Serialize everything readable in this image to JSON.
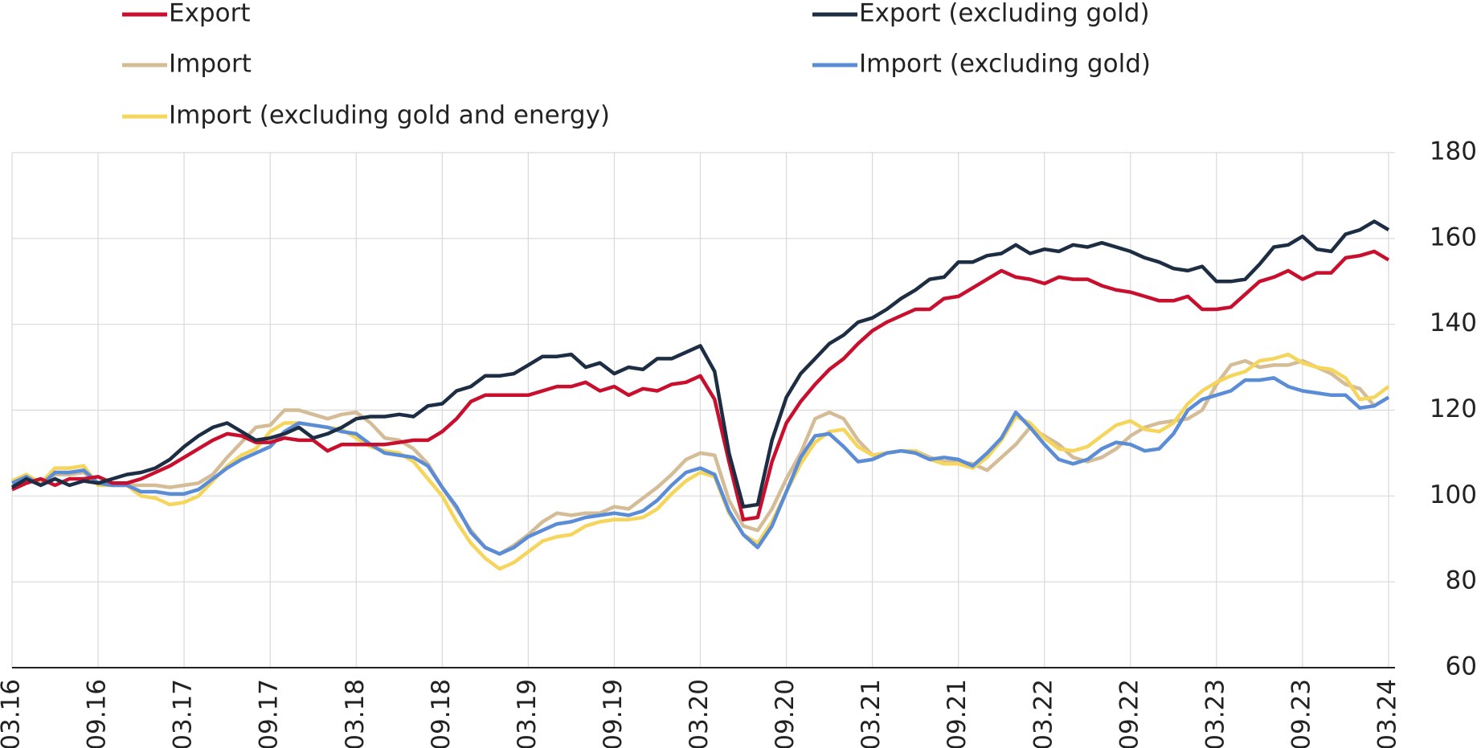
{
  "chart_data": {
    "type": "line",
    "categories": [
      "03.16",
      null,
      null,
      null,
      null,
      null,
      "09.16",
      null,
      null,
      null,
      null,
      null,
      "03.17",
      null,
      null,
      null,
      null,
      null,
      "09.17",
      null,
      null,
      null,
      null,
      null,
      "03.18",
      null,
      null,
      null,
      null,
      null,
      "09.18",
      null,
      null,
      null,
      null,
      null,
      "03.19",
      null,
      null,
      null,
      null,
      null,
      "09.19",
      null,
      null,
      null,
      null,
      null,
      "03.20",
      null,
      null,
      null,
      null,
      null,
      "09.20",
      null,
      null,
      null,
      null,
      null,
      "03.21",
      null,
      null,
      null,
      null,
      null,
      "09.21",
      null,
      null,
      null,
      null,
      null,
      "03.22",
      null,
      null,
      null,
      null,
      null,
      "09.22",
      null,
      null,
      null,
      null,
      null,
      "03.23",
      null,
      null,
      null,
      null,
      null,
      "09.23",
      null,
      null,
      null,
      null,
      null,
      "03.24"
    ],
    "series": [
      {
        "name": "Export",
        "color": "#c8102e",
        "values": [
          101.5,
          103,
          104,
          102.5,
          104,
          104,
          104.5,
          103,
          103,
          104,
          105.5,
          107,
          109,
          111,
          113,
          114.5,
          114,
          112.5,
          112.5,
          113.5,
          113,
          113,
          110.5,
          112,
          112,
          112,
          112,
          112.5,
          113,
          113,
          115,
          118,
          122,
          123.5,
          123.5,
          123.5,
          123.5,
          124.5,
          125.5,
          125.5,
          126.5,
          124.5,
          125.5,
          123.5,
          125,
          124.5,
          126,
          126.5,
          128,
          122.5,
          108,
          94.5,
          95,
          108,
          117,
          122,
          126,
          129.5,
          132,
          135.5,
          138.5,
          140.5,
          142,
          143.5,
          143.5,
          146,
          146.5,
          148.5,
          150.5,
          152.5,
          151,
          150.5,
          149.5,
          151,
          150.5,
          150.5,
          149,
          148,
          147.5,
          146.5,
          145.5,
          145.5,
          146.5,
          143.5,
          143.5,
          144,
          147,
          150,
          151,
          152.5,
          150.5,
          152,
          152,
          155.5,
          156,
          157,
          155
        ]
      },
      {
        "name": "Export (excluding gold)",
        "color": "#1d2d44",
        "values": [
          102,
          104,
          102.5,
          104,
          102.5,
          103.5,
          103,
          104,
          105,
          105.5,
          106.5,
          108.5,
          111.5,
          114,
          116,
          117,
          115,
          113,
          113.5,
          114.5,
          116,
          113.5,
          114.5,
          116,
          118,
          118.5,
          118.5,
          119,
          118.5,
          121,
          121.5,
          124.5,
          125.5,
          128,
          128,
          128.5,
          130.5,
          132.5,
          132.5,
          133,
          130,
          131,
          128.5,
          130,
          129.5,
          132,
          132,
          133.5,
          135,
          129,
          110,
          97.5,
          98,
          113,
          123,
          128.5,
          132,
          135.5,
          137.5,
          140.5,
          141.5,
          143.5,
          146,
          148,
          150.5,
          151,
          154.5,
          154.5,
          156,
          156.5,
          158.5,
          156.5,
          157.5,
          157,
          158.5,
          158,
          159,
          158,
          157,
          155.5,
          154.5,
          153,
          152.5,
          153.5,
          150,
          150,
          150.5,
          154,
          158,
          158.5,
          160.5,
          157.5,
          157,
          161,
          162,
          164,
          162
        ]
      },
      {
        "name": "Import",
        "color": "#d4bc96",
        "values": [
          103.5,
          104.5,
          102.5,
          105,
          105,
          105.5,
          103,
          102.5,
          102.5,
          102.5,
          102.5,
          102,
          102.5,
          103,
          105,
          109,
          112.5,
          116,
          116.5,
          120,
          120,
          119,
          118,
          119,
          119.5,
          117,
          113.5,
          113,
          111,
          107.5,
          102,
          97,
          92,
          88,
          86.5,
          88.5,
          91,
          94,
          96,
          95.5,
          96,
          96,
          97.5,
          97,
          99.5,
          102,
          105,
          108.5,
          110,
          109.5,
          99,
          93,
          92,
          97,
          104,
          110,
          118,
          119.5,
          118,
          113,
          109.5,
          110,
          110.5,
          110.5,
          109,
          108,
          108,
          107.5,
          106,
          109,
          112,
          116,
          114,
          112,
          109,
          108,
          109,
          111,
          114,
          116,
          117,
          117.5,
          118,
          120,
          126,
          130.5,
          131.5,
          130,
          130.5,
          130.5,
          131.5,
          130,
          128.5,
          126,
          125,
          121,
          123
        ]
      },
      {
        "name": "Import (excluding gold)",
        "color": "#5b8dd6",
        "values": [
          103,
          104.5,
          102.5,
          105.5,
          105.5,
          106,
          103,
          102.5,
          102.5,
          101,
          101,
          100.5,
          100.5,
          101.5,
          104,
          106.5,
          108.5,
          110,
          111.5,
          115,
          117,
          116.5,
          116,
          115,
          114.5,
          112,
          110,
          109.5,
          109,
          107,
          102,
          97.5,
          91.5,
          88,
          86.5,
          88,
          90.5,
          92,
          93.5,
          94,
          95,
          95.5,
          96,
          95.5,
          96.5,
          99,
          102.5,
          105.5,
          106.5,
          105,
          96.5,
          91,
          88,
          93,
          101,
          109,
          114,
          114.5,
          111.5,
          108,
          108.5,
          110,
          110.5,
          110,
          108.5,
          109,
          108.5,
          107,
          110,
          113.5,
          119.5,
          116,
          112,
          108.5,
          107.5,
          108.5,
          111,
          112.5,
          112,
          110.5,
          111,
          114.5,
          120,
          122.5,
          123.5,
          124.5,
          127,
          127,
          127.5,
          125.5,
          124.5,
          124,
          123.5,
          123.5,
          120.5,
          121,
          123
        ]
      },
      {
        "name": "Import (excluding gold and energy)",
        "color": "#f5d55b",
        "values": [
          103.5,
          105,
          103,
          106.5,
          106.5,
          107,
          102.5,
          102.5,
          102.5,
          100,
          99.5,
          98,
          98.5,
          100,
          103.5,
          107,
          109.5,
          111,
          115,
          117,
          117,
          116.5,
          116,
          115.5,
          113.5,
          111.5,
          110.5,
          110,
          108,
          104,
          100,
          94,
          89,
          85.5,
          83,
          84.5,
          87,
          89.5,
          90.5,
          91,
          93,
          94,
          94.5,
          94.5,
          95,
          97,
          100.5,
          103.5,
          105.5,
          104.5,
          96,
          91,
          89,
          94,
          101,
          107.5,
          112.5,
          115,
          115.5,
          111.5,
          109.5,
          110,
          110.5,
          110.5,
          108.5,
          107.5,
          107.5,
          106.5,
          109,
          113,
          118.5,
          117,
          113.5,
          111,
          110.5,
          111.5,
          114,
          116.5,
          117.5,
          115.5,
          115,
          117,
          121.5,
          124.5,
          126.5,
          128,
          129,
          131.5,
          132,
          133,
          131,
          130,
          129.5,
          127.5,
          122.5,
          123,
          125.5
        ]
      }
    ],
    "ylim": [
      60,
      180
    ],
    "yticks": [
      60,
      80,
      100,
      120,
      140,
      160,
      180
    ],
    "grid": true
  }
}
